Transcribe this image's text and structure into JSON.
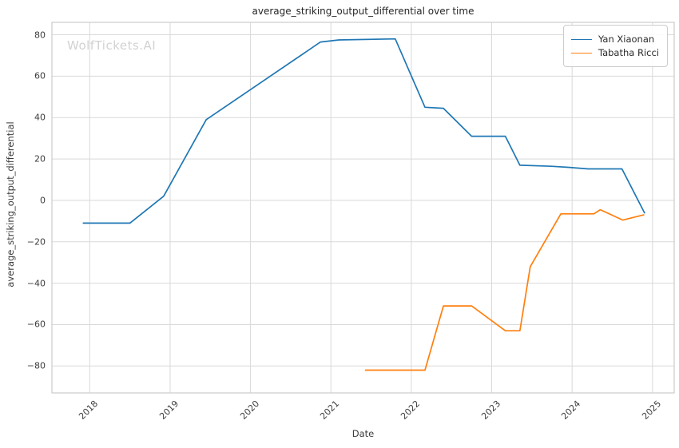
{
  "watermark": "WolfTickets.AI",
  "chart_data": {
    "type": "line",
    "title": "average_striking_output_differential over time",
    "xlabel": "Date",
    "ylabel": "average_striking_output_differential",
    "grid": true,
    "grid_color": "#d9d9d9",
    "spine_color": "#cccccc",
    "legend_position": "upper right",
    "xlim": [
      2017.53,
      2025.27
    ],
    "ylim": [
      -93,
      86
    ],
    "xticks": {
      "values": [
        2018,
        2019,
        2020,
        2021,
        2022,
        2023,
        2024,
        2025
      ],
      "labels": [
        "2018",
        "2019",
        "2020",
        "2021",
        "2022",
        "2023",
        "2024",
        "2025"
      ]
    },
    "yticks": {
      "values": [
        80,
        60,
        40,
        20,
        0,
        -20,
        -40,
        -60,
        -80
      ],
      "labels": [
        "80",
        "60",
        "40",
        "20",
        "0",
        "−20",
        "−40",
        "−60",
        "−80"
      ]
    },
    "series": [
      {
        "name": "Yan Xiaonan",
        "color": "#1f77b4",
        "x": [
          2017.92,
          2018.5,
          2018.92,
          2019.45,
          2020.0,
          2020.87,
          2021.1,
          2021.8,
          2022.17,
          2022.4,
          2022.75,
          2023.17,
          2023.35,
          2023.74,
          2023.95,
          2024.2,
          2024.62,
          2024.9
        ],
        "y": [
          -11,
          -11,
          2,
          39,
          53.5,
          76.5,
          77.5,
          78,
          45,
          44.5,
          31,
          31,
          17,
          16.5,
          16,
          15.2,
          15.2,
          -6
        ]
      },
      {
        "name": "Tabatha Ricci",
        "color": "#ff7f0e",
        "x": [
          2021.43,
          2022.17,
          2022.4,
          2022.75,
          2023.17,
          2023.35,
          2023.48,
          2023.86,
          2024.27,
          2024.35,
          2024.63,
          2024.89
        ],
        "y": [
          -82,
          -82,
          -51,
          -51,
          -63,
          -63,
          -32,
          -6.5,
          -6.5,
          -4.5,
          -9.5,
          -7
        ]
      }
    ]
  }
}
